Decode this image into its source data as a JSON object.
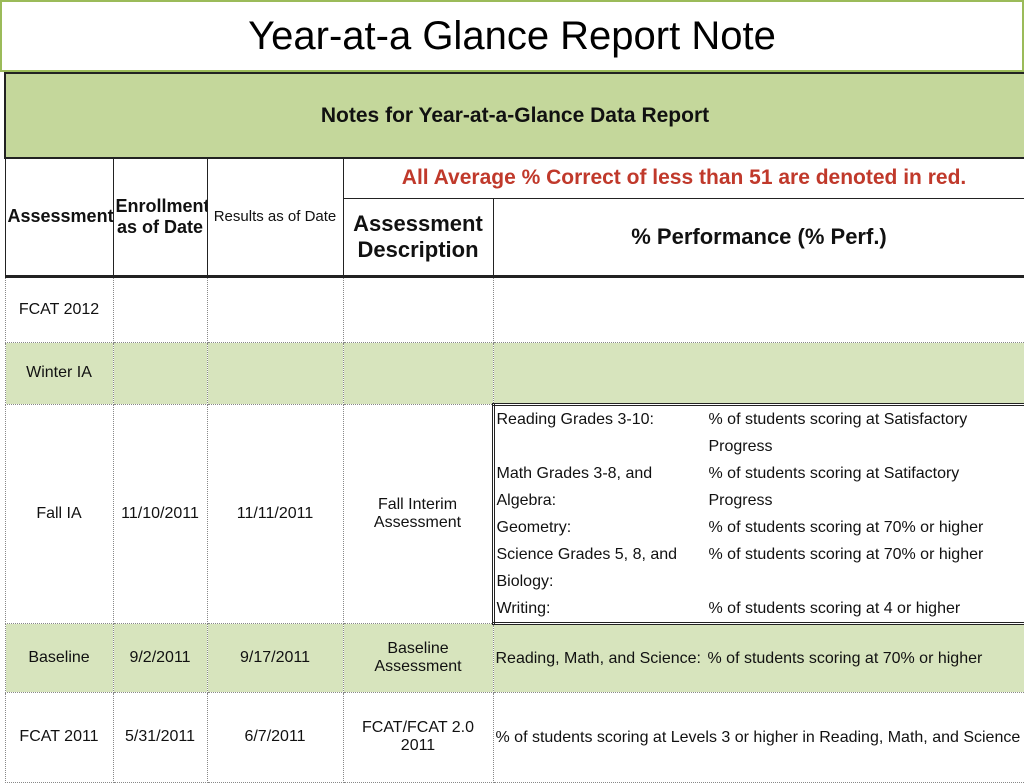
{
  "title": "Year-at-a Glance Report Note",
  "table": {
    "caption": "Notes for Year-at-a-Glance Data Report",
    "note": "All Average % Correct of less than 51 are denoted in red.",
    "headers": [
      "Assessment",
      "Enrollment as of Date",
      "Results as of Date",
      "Assessment Description",
      "% Performance (% Perf.)"
    ],
    "rows": [
      {
        "assessment": "FCAT 2012"
      },
      {
        "assessment": "Winter IA"
      },
      {
        "assessment": "Fall IA",
        "enrollment": "11/10/2011",
        "results": "11/11/2011",
        "description": "Fall Interim Assessment",
        "performance": [
          {
            "subject": "Reading Grades 3-10:",
            "measure": "% of students scoring at Satisfactory Progress"
          },
          {
            "subject": "Math Grades 3-8, and Algebra:",
            "measure": "% of students scoring at Satifactory Progress"
          },
          {
            "subject": "Geometry:",
            "measure": "% of students scoring at 70% or higher"
          },
          {
            "subject": "Science Grades 5, 8, and Biology:",
            "measure": "% of students scoring at 70% or higher"
          },
          {
            "subject": "Writing:",
            "measure": "% of students scoring at 4 or higher"
          }
        ]
      },
      {
        "assessment": "Baseline",
        "enrollment": "9/2/2011",
        "results": "9/17/2011",
        "description": "Baseline Assessment",
        "performance": [
          {
            "subject": "Reading, Math, and Science:",
            "measure": "% of students scoring at 70% or higher"
          }
        ]
      },
      {
        "assessment": "FCAT 2011",
        "enrollment": "5/31/2011",
        "results": "6/7/2011",
        "description": "FCAT/FCAT 2.0 2011",
        "performance": [
          {
            "measure": "% of students scoring at Levels 3 or higher in Reading, Math, and Science"
          }
        ]
      }
    ]
  }
}
